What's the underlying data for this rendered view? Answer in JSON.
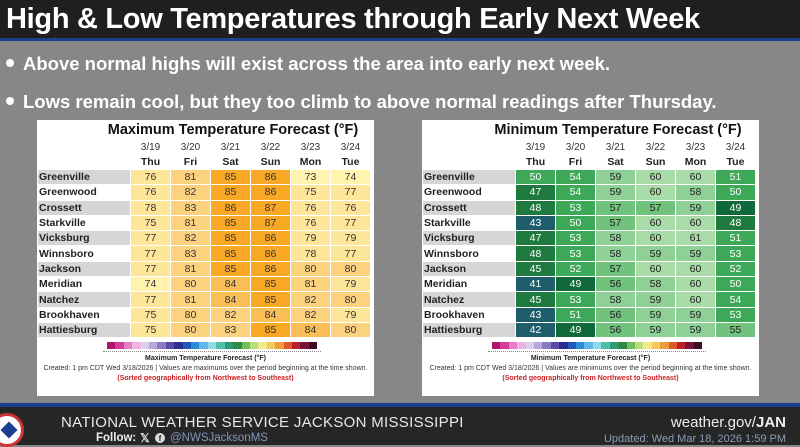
{
  "title": "High & Low Temperatures through Early Next Week",
  "bullets": [
    "Above normal highs will exist across the area into early next week.",
    "Lows remain cool, but they too climb to above normal readings after Thursday."
  ],
  "dates": [
    "3/19",
    "3/20",
    "3/21",
    "3/22",
    "3/23",
    "3/24"
  ],
  "days": [
    "Thu",
    "Fri",
    "Sat",
    "Sun",
    "Mon",
    "Tue"
  ],
  "cities": [
    "Greenville",
    "Greenwood",
    "Crossett",
    "Starkville",
    "Vicksburg",
    "Winnsboro",
    "Jackson",
    "Meridian",
    "Natchez",
    "Brookhaven",
    "Hattiesburg"
  ],
  "max": {
    "title": "Maximum Temperature Forecast (°F)",
    "values": [
      [
        76,
        81,
        85,
        86,
        73,
        74
      ],
      [
        76,
        82,
        85,
        86,
        75,
        77
      ],
      [
        78,
        83,
        86,
        87,
        76,
        76
      ],
      [
        75,
        81,
        85,
        87,
        76,
        77
      ],
      [
        77,
        82,
        85,
        86,
        79,
        79
      ],
      [
        77,
        83,
        85,
        86,
        78,
        77
      ],
      [
        77,
        81,
        85,
        86,
        80,
        80
      ],
      [
        74,
        80,
        84,
        85,
        81,
        79
      ],
      [
        77,
        81,
        84,
        85,
        82,
        80
      ],
      [
        75,
        80,
        82,
        84,
        82,
        79
      ],
      [
        75,
        80,
        83,
        85,
        84,
        80
      ]
    ],
    "colorbar_label": "Maximum Temperature Forecast (°F)",
    "created": "Created: 1 pm CDT Wed 3/18/2026  |  Values are maximums over the period beginning at the time shown.",
    "sorted": "(Sorted geographically from Northwest to Southeast)"
  },
  "min": {
    "title": "Minimum Temperature Forecast (°F)",
    "values": [
      [
        50,
        54,
        59,
        60,
        60,
        51
      ],
      [
        47,
        54,
        59,
        60,
        58,
        50
      ],
      [
        48,
        53,
        57,
        57,
        59,
        49
      ],
      [
        43,
        50,
        57,
        60,
        60,
        48
      ],
      [
        47,
        53,
        58,
        60,
        61,
        51
      ],
      [
        48,
        53,
        58,
        59,
        59,
        53
      ],
      [
        45,
        52,
        57,
        60,
        60,
        52
      ],
      [
        41,
        49,
        56,
        58,
        60,
        50
      ],
      [
        45,
        53,
        58,
        59,
        60,
        54
      ],
      [
        43,
        51,
        56,
        59,
        59,
        53
      ],
      [
        42,
        49,
        56,
        59,
        59,
        55
      ]
    ],
    "colorbar_label": "Minimum Temperature Forecast (°F)",
    "created": "Created: 1 pm CDT Wed 3/18/2026  |  Values are minimums over the period beginning at the time shown.",
    "sorted": "(Sorted geographically from Northwest to Southeast)"
  },
  "footer": {
    "office": "NATIONAL WEATHER SERVICE JACKSON MISSISSIPPI",
    "follow": "Follow:",
    "handle": "@NWSJacksonMS",
    "site_prefix": "weather.gov/",
    "site_bold": "JAN",
    "updated": "Updated: Wed Mar 18, 2026 1:59 PM"
  },
  "colors": {
    "header_bg": "#1f1f1f",
    "accent_blue": "#1c3f8f",
    "background": "#878787",
    "sorted_red": "#c92222"
  }
}
